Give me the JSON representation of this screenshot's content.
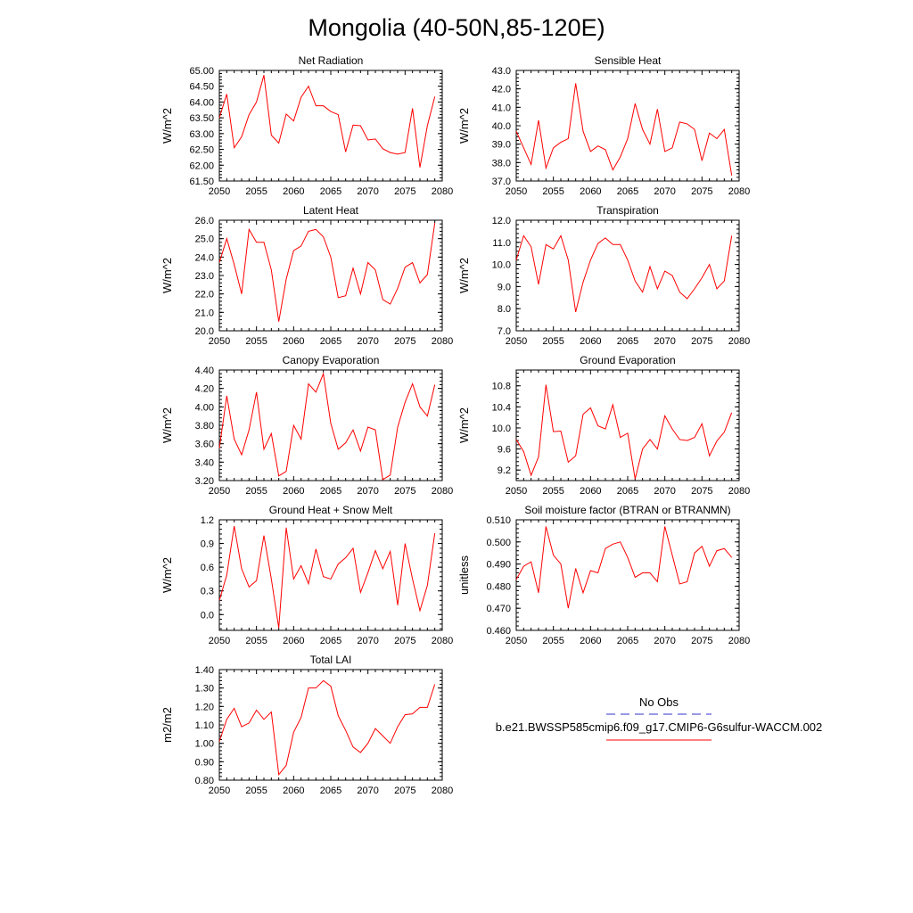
{
  "figure": {
    "title": "Mongolia (40-50N,85-120E)",
    "legend": {
      "obs_label": "No Obs",
      "obs_color": "#3333cc",
      "model_label": "b.e21.BWSSP585cmip6.f09_g17.CMIP6-G6sulfur-WACCM.002",
      "model_color": "#ff0000"
    }
  },
  "chart_data": [
    {
      "type": "line",
      "title": "Net Radiation",
      "ylabel": "W/m^2",
      "xlim": [
        2050,
        2080
      ],
      "ylim": [
        61.5,
        65.0
      ],
      "xticks": [
        "2050",
        "2055",
        "2060",
        "2065",
        "2070",
        "2075",
        "2080"
      ],
      "yticks": [
        "61.50",
        "62.00",
        "62.50",
        "63.00",
        "63.50",
        "64.00",
        "64.50",
        "65.00"
      ],
      "series": [
        {
          "color": "#ff0000",
          "x": [
            2050,
            2051,
            2052,
            2053,
            2054,
            2055,
            2056,
            2057,
            2058,
            2059,
            2060,
            2061,
            2062,
            2063,
            2064,
            2065,
            2066,
            2067,
            2068,
            2069,
            2070,
            2071,
            2072,
            2073,
            2074,
            2075,
            2076,
            2077,
            2078,
            2079
          ],
          "values": [
            63.5,
            64.25,
            62.55,
            62.9,
            63.6,
            64.0,
            64.85,
            62.95,
            62.7,
            63.62,
            63.4,
            64.15,
            64.5,
            63.88,
            63.88,
            63.7,
            63.6,
            62.42,
            63.27,
            63.25,
            62.8,
            62.83,
            62.52,
            62.4,
            62.35,
            62.4,
            63.8,
            61.93,
            63.25,
            64.17
          ]
        }
      ]
    },
    {
      "type": "line",
      "title": "Sensible Heat",
      "ylabel": "W/m^2",
      "xlim": [
        2050,
        2080
      ],
      "ylim": [
        37.0,
        43.0
      ],
      "xticks": [
        "2050",
        "2055",
        "2060",
        "2065",
        "2070",
        "2075",
        "2080"
      ],
      "yticks": [
        "37.0",
        "38.0",
        "39.0",
        "40.0",
        "41.0",
        "42.0",
        "43.0"
      ],
      "series": [
        {
          "color": "#ff0000",
          "x": [
            2050,
            2051,
            2052,
            2053,
            2054,
            2055,
            2056,
            2057,
            2058,
            2059,
            2060,
            2061,
            2062,
            2063,
            2064,
            2065,
            2066,
            2067,
            2068,
            2069,
            2070,
            2071,
            2072,
            2073,
            2074,
            2075,
            2076,
            2077,
            2078,
            2079
          ],
          "values": [
            39.7,
            38.8,
            37.9,
            40.3,
            37.7,
            38.8,
            39.1,
            39.3,
            42.3,
            39.7,
            38.6,
            38.9,
            38.7,
            37.6,
            38.3,
            39.3,
            41.2,
            39.8,
            39.0,
            40.9,
            38.6,
            38.8,
            40.2,
            40.1,
            39.8,
            38.1,
            39.6,
            39.3,
            39.8,
            37.3
          ]
        }
      ]
    },
    {
      "type": "line",
      "title": "Latent Heat",
      "ylabel": "W/m^2",
      "xlim": [
        2050,
        2080
      ],
      "ylim": [
        20.0,
        26.0
      ],
      "xticks": [
        "2050",
        "2055",
        "2060",
        "2065",
        "2070",
        "2075",
        "2080"
      ],
      "yticks": [
        "20.0",
        "21.0",
        "22.0",
        "23.0",
        "24.0",
        "25.0",
        "26.0"
      ],
      "series": [
        {
          "color": "#ff0000",
          "x": [
            2050,
            2051,
            2052,
            2053,
            2054,
            2055,
            2056,
            2057,
            2058,
            2059,
            2060,
            2061,
            2062,
            2063,
            2064,
            2065,
            2066,
            2067,
            2068,
            2069,
            2070,
            2071,
            2072,
            2073,
            2074,
            2075,
            2076,
            2077,
            2078,
            2079
          ],
          "values": [
            23.7,
            25.0,
            23.6,
            22.0,
            25.5,
            24.8,
            24.8,
            23.3,
            20.5,
            22.8,
            24.35,
            24.6,
            25.4,
            25.5,
            25.1,
            24.0,
            21.8,
            21.9,
            23.4,
            22.0,
            23.7,
            23.3,
            21.7,
            21.45,
            22.3,
            23.45,
            23.7,
            22.6,
            23.05,
            25.85
          ]
        }
      ]
    },
    {
      "type": "line",
      "title": "Transpiration",
      "ylabel": "W/m^2",
      "xlim": [
        2050,
        2080
      ],
      "ylim": [
        7.0,
        12.0
      ],
      "xticks": [
        "2050",
        "2055",
        "2060",
        "2065",
        "2070",
        "2075",
        "2080"
      ],
      "yticks": [
        "7.0",
        "8.0",
        "9.0",
        "10.0",
        "11.0",
        "12.0"
      ],
      "series": [
        {
          "color": "#ff0000",
          "x": [
            2050,
            2051,
            2052,
            2053,
            2054,
            2055,
            2056,
            2057,
            2058,
            2059,
            2060,
            2061,
            2062,
            2063,
            2064,
            2065,
            2066,
            2067,
            2068,
            2069,
            2070,
            2071,
            2072,
            2073,
            2074,
            2075,
            2076,
            2077,
            2078,
            2079
          ],
          "values": [
            10.2,
            11.3,
            10.8,
            9.1,
            10.9,
            10.7,
            11.3,
            10.2,
            7.85,
            9.2,
            10.2,
            10.95,
            11.2,
            10.9,
            10.9,
            10.2,
            9.25,
            8.75,
            9.9,
            8.9,
            9.7,
            9.5,
            8.75,
            8.45,
            8.9,
            9.4,
            10.0,
            8.9,
            9.25,
            11.3
          ]
        }
      ]
    },
    {
      "type": "line",
      "title": "Canopy Evaporation",
      "ylabel": "W/m^2",
      "xlim": [
        2050,
        2080
      ],
      "ylim": [
        3.2,
        4.4
      ],
      "xticks": [
        "2050",
        "2055",
        "2060",
        "2065",
        "2070",
        "2075",
        "2080"
      ],
      "yticks": [
        "3.20",
        "3.40",
        "3.60",
        "3.80",
        "4.00",
        "4.20",
        "4.40"
      ],
      "series": [
        {
          "color": "#ff0000",
          "x": [
            2050,
            2051,
            2052,
            2053,
            2054,
            2055,
            2056,
            2057,
            2058,
            2059,
            2060,
            2061,
            2062,
            2063,
            2064,
            2065,
            2066,
            2067,
            2068,
            2069,
            2070,
            2071,
            2072,
            2073,
            2074,
            2075,
            2076,
            2077,
            2078,
            2079
          ],
          "values": [
            3.55,
            4.12,
            3.65,
            3.48,
            3.75,
            4.16,
            3.54,
            3.71,
            3.25,
            3.3,
            3.8,
            3.65,
            4.25,
            4.16,
            4.36,
            3.82,
            3.54,
            3.61,
            3.75,
            3.52,
            3.78,
            3.75,
            3.21,
            3.26,
            3.78,
            4.05,
            4.25,
            4.0,
            3.9,
            4.24
          ]
        }
      ]
    },
    {
      "type": "line",
      "title": "Ground Evaporation",
      "ylabel": "W/m^2",
      "xlim": [
        2050,
        2080
      ],
      "ylim": [
        9.0,
        11.1
      ],
      "xticks": [
        "2050",
        "2055",
        "2060",
        "2065",
        "2070",
        "2075",
        "2080"
      ],
      "yticks": [
        "9.2",
        "9.6",
        "10.0",
        "10.4",
        "10.8"
      ],
      "series": [
        {
          "color": "#ff0000",
          "x": [
            2050,
            2051,
            2052,
            2053,
            2054,
            2055,
            2056,
            2057,
            2058,
            2059,
            2060,
            2061,
            2062,
            2063,
            2064,
            2065,
            2066,
            2067,
            2068,
            2069,
            2070,
            2071,
            2072,
            2073,
            2074,
            2075,
            2076,
            2077,
            2078,
            2079
          ],
          "values": [
            9.78,
            9.55,
            9.1,
            9.45,
            10.82,
            9.93,
            9.94,
            9.35,
            9.47,
            10.26,
            10.38,
            10.04,
            9.98,
            10.44,
            9.82,
            9.9,
            9.03,
            9.6,
            9.78,
            9.6,
            10.23,
            9.98,
            9.78,
            9.76,
            9.82,
            10.08,
            9.47,
            9.75,
            9.92,
            10.29
          ]
        }
      ]
    },
    {
      "type": "line",
      "title": "Ground Heat + Snow Melt",
      "ylabel": "W/m^2",
      "xlim": [
        2050,
        2080
      ],
      "ylim": [
        -0.2,
        1.2
      ],
      "xticks": [
        "2050",
        "2055",
        "2060",
        "2065",
        "2070",
        "2075",
        "2080"
      ],
      "yticks": [
        "0.0",
        "0.3",
        "0.6",
        "0.9",
        "1.2"
      ],
      "series": [
        {
          "color": "#ff0000",
          "x": [
            2050,
            2051,
            2052,
            2053,
            2054,
            2055,
            2056,
            2057,
            2058,
            2059,
            2060,
            2061,
            2062,
            2063,
            2064,
            2065,
            2066,
            2067,
            2068,
            2069,
            2070,
            2071,
            2072,
            2073,
            2074,
            2075,
            2076,
            2077,
            2078,
            2079
          ],
          "values": [
            0.18,
            0.5,
            1.12,
            0.58,
            0.35,
            0.43,
            1.0,
            0.45,
            -0.17,
            1.1,
            0.45,
            0.62,
            0.39,
            0.83,
            0.48,
            0.45,
            0.64,
            0.72,
            0.84,
            0.28,
            0.53,
            0.81,
            0.58,
            0.8,
            0.12,
            0.9,
            0.45,
            0.05,
            0.37,
            1.03
          ]
        }
      ]
    },
    {
      "type": "line",
      "title": "Soil moisture factor (BTRAN or BTRANMN)",
      "ylabel": "unitless",
      "xlim": [
        2050,
        2080
      ],
      "ylim": [
        0.46,
        0.51
      ],
      "xticks": [
        "2050",
        "2055",
        "2060",
        "2065",
        "2070",
        "2075",
        "2080"
      ],
      "yticks": [
        "0.460",
        "0.470",
        "0.480",
        "0.490",
        "0.500",
        "0.510"
      ],
      "series": [
        {
          "color": "#ff0000",
          "x": [
            2050,
            2051,
            2052,
            2053,
            2054,
            2055,
            2056,
            2057,
            2058,
            2059,
            2060,
            2061,
            2062,
            2063,
            2064,
            2065,
            2066,
            2067,
            2068,
            2069,
            2070,
            2071,
            2072,
            2073,
            2074,
            2075,
            2076,
            2077,
            2078,
            2079
          ],
          "values": [
            0.483,
            0.489,
            0.491,
            0.477,
            0.507,
            0.494,
            0.49,
            0.47,
            0.488,
            0.477,
            0.487,
            0.486,
            0.497,
            0.499,
            0.5,
            0.493,
            0.484,
            0.486,
            0.486,
            0.482,
            0.507,
            0.494,
            0.481,
            0.482,
            0.495,
            0.498,
            0.489,
            0.496,
            0.497,
            0.493
          ]
        }
      ]
    },
    {
      "type": "line",
      "title": "Total LAI",
      "ylabel": "m2/m2",
      "xlim": [
        2050,
        2080
      ],
      "ylim": [
        0.8,
        1.4
      ],
      "xticks": [
        "2050",
        "2055",
        "2060",
        "2065",
        "2070",
        "2075",
        "2080"
      ],
      "yticks": [
        "0.80",
        "0.90",
        "1.00",
        "1.10",
        "1.20",
        "1.30",
        "1.40"
      ],
      "series": [
        {
          "color": "#ff0000",
          "x": [
            2050,
            2051,
            2052,
            2053,
            2054,
            2055,
            2056,
            2057,
            2058,
            2059,
            2060,
            2061,
            2062,
            2063,
            2064,
            2065,
            2066,
            2067,
            2068,
            2069,
            2070,
            2071,
            2072,
            2073,
            2074,
            2075,
            2076,
            2077,
            2078,
            2079
          ],
          "values": [
            1.01,
            1.13,
            1.19,
            1.09,
            1.11,
            1.18,
            1.13,
            1.17,
            0.83,
            0.88,
            1.06,
            1.14,
            1.3,
            1.3,
            1.34,
            1.31,
            1.15,
            1.07,
            0.98,
            0.95,
            1.0,
            1.08,
            1.04,
            1.0,
            1.09,
            1.155,
            1.16,
            1.195,
            1.195,
            1.32
          ]
        }
      ]
    }
  ]
}
